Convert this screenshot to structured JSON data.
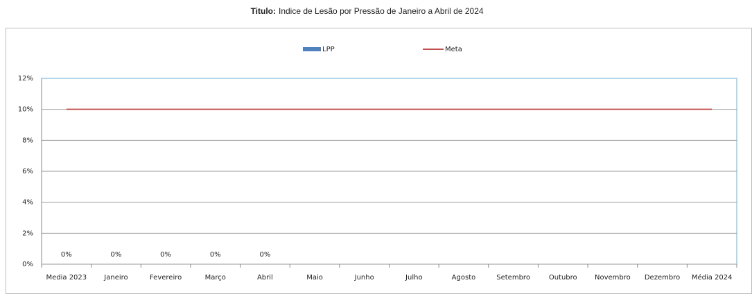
{
  "chart_data": {
    "type": "bar",
    "title_label": "Titulo:",
    "title": "Indice de Lesão por Pressão de Janeiro a Abril de 2024",
    "categories": [
      "Media 2023",
      "Janeiro",
      "Fevereiro",
      "Março",
      "Abril",
      "Maio",
      "Junho",
      "Julho",
      "Agosto",
      "Setembro",
      "Outubro",
      "Novembro",
      "Dezembro",
      "Média 2024"
    ],
    "series": [
      {
        "name": "LPP",
        "type": "bar",
        "color": "#4f81bd",
        "values": [
          0,
          0,
          0,
          0,
          0,
          null,
          null,
          null,
          null,
          null,
          null,
          null,
          null,
          null
        ],
        "value_labels": [
          "0%",
          "0%",
          "0%",
          "0%",
          "0%",
          null,
          null,
          null,
          null,
          null,
          null,
          null,
          null,
          null
        ]
      },
      {
        "name": "Meta",
        "type": "line",
        "color": "#c0504d",
        "values": [
          10,
          10,
          10,
          10,
          10,
          10,
          10,
          10,
          10,
          10,
          10,
          10,
          10,
          10
        ]
      }
    ],
    "ylim": [
      0,
      12
    ],
    "yticks": [
      {
        "value": 0,
        "label": "0%"
      },
      {
        "value": 2,
        "label": "2%"
      },
      {
        "value": 4,
        "label": "4%"
      },
      {
        "value": 6,
        "label": "6%"
      },
      {
        "value": 8,
        "label": "8%"
      },
      {
        "value": 10,
        "label": "10%"
      },
      {
        "value": 12,
        "label": "12%"
      }
    ],
    "grid": true,
    "legend": "top"
  }
}
